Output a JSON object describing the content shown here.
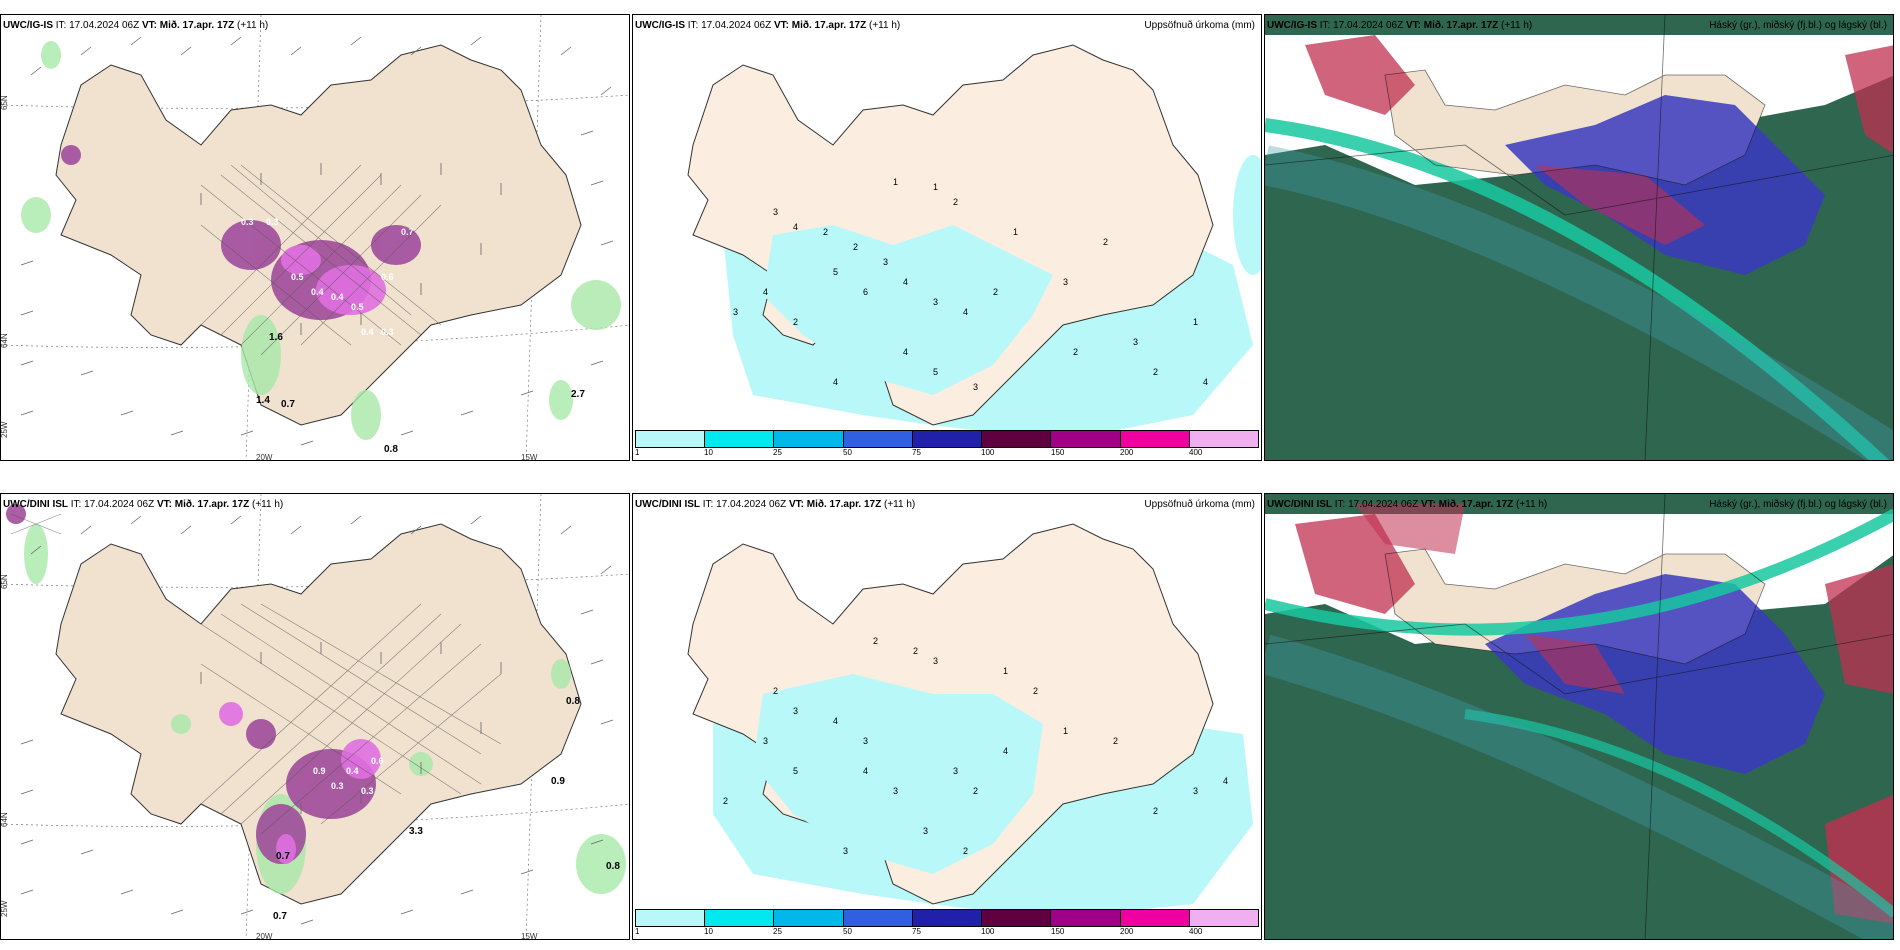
{
  "panels": [
    {
      "model": "UWC/IG-IS",
      "it": "IT: 17.04.2024 06Z",
      "vt_label": "VT:",
      "vt": "Mið. 17.apr. 17Z",
      "lead": "(+11 h)",
      "title": ""
    },
    {
      "model": "UWC/IG-IS",
      "it": "IT: 17.04.2024 06Z",
      "vt_label": "VT:",
      "vt": "Mið. 17.apr. 17Z",
      "lead": "(+11 h)",
      "title": "Uppsöfnuð úrkoma (mm)"
    },
    {
      "model": "UWC/IG-IS",
      "it": "IT: 17.04.2024 06Z",
      "vt_label": "VT:",
      "vt": "Mið. 17.apr. 17Z",
      "lead": "(+11 h)",
      "title": "Háský (gr.), miðský (fj.bl.) og lágský (bl.)"
    },
    {
      "model": "UWC/DINI ISL",
      "it": "IT: 17.04.2024 06Z",
      "vt_label": "VT:",
      "vt": "Mið. 17.apr. 17Z",
      "lead": "(+11 h)",
      "title": ""
    },
    {
      "model": "UWC/DINI ISL",
      "it": "IT: 17.04.2024 06Z",
      "vt_label": "VT:",
      "vt": "Mið. 17.apr. 17Z",
      "lead": "(+11 h)",
      "title": "Uppsöfnuð úrkoma (mm)"
    },
    {
      "model": "UWC/DINI ISL",
      "it": "IT: 17.04.2024 06Z",
      "vt_label": "VT:",
      "vt": "Mið. 17.apr. 17Z",
      "lead": "(+11 h)",
      "title": "Háský (gr.), miðský (fj.bl.) og lágský (bl.)"
    }
  ],
  "grid_labels": {
    "lon1": "20W",
    "lon2": "15W",
    "lat1": "65N",
    "lat2": "64N",
    "lat3": "25W"
  },
  "colorbar": {
    "labels": [
      "1",
      "10",
      "25",
      "50",
      "75",
      "100",
      "150",
      "200",
      "400"
    ],
    "colors": [
      "#b8f8f8",
      "#00e8f0",
      "#00b8ea",
      "#3060e0",
      "#2020a8",
      "#600040",
      "#a00088",
      "#f000a0",
      "#f0b0f0"
    ]
  },
  "wind_labels_top": [
    "0.3",
    "0.3",
    "0.5",
    "0.4",
    "0.4",
    "0.5",
    "0.6",
    "0.4",
    "0.3",
    "0.7",
    "1.6",
    "0.7",
    "0.8",
    "1.4",
    "2.7"
  ],
  "wind_labels_bottom": [
    "0.9",
    "0.3",
    "0.4",
    "0.3",
    "0.6",
    "0.8",
    "0.9",
    "0.7",
    "0.8",
    "0.7",
    "3.3"
  ],
  "precip_numbers_top": [
    "1",
    "1",
    "2",
    "3",
    "4",
    "2",
    "2",
    "3",
    "4",
    "5",
    "6",
    "4",
    "3",
    "2",
    "3",
    "4",
    "2",
    "1",
    "4",
    "5",
    "3",
    "4",
    "2",
    "3",
    "1",
    "2",
    "3",
    "4",
    "2"
  ],
  "precip_numbers_bottom": [
    "2",
    "2",
    "3",
    "2",
    "3",
    "4",
    "3",
    "3",
    "5",
    "4",
    "3",
    "2",
    "3",
    "2",
    "4",
    "1",
    "2",
    "1",
    "2",
    "2",
    "3",
    "4",
    "3",
    "2",
    "3"
  ],
  "colors": {
    "land": "#f0e2cf",
    "land_dark": "#e8d8c4",
    "sea": "#ffffff",
    "precip": "#b8f8f8",
    "magenta": "#e070e0",
    "purple": "#a04c9c",
    "green": "#a8e8a8",
    "cloud_green": "#2e6650",
    "cloud_blue": "#3a3ac0",
    "cloud_red": "#c03050",
    "cloud_cyan": "#18c8a0"
  }
}
